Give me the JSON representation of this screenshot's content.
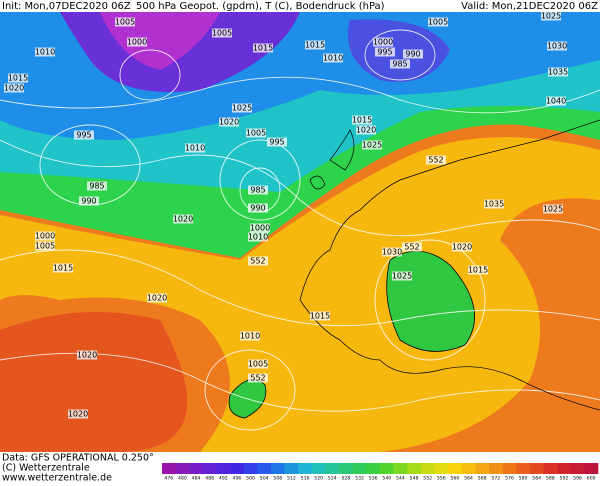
{
  "header": {
    "init": "Init: Mon,07DEC2020 06Z",
    "product": "500 hPa Geopot. (gpdm), T (C), Bodendruck (hPa)",
    "valid": "Valid: Mon,21DEC2020 06Z"
  },
  "footer": {
    "data": "Data: GFS OPERATIONAL 0.250°",
    "copyright": "(C) Wetterzentrale",
    "url": "www.wetterzentrale.de"
  },
  "colorbar_labels": [
    476,
    480,
    484,
    488,
    492,
    496,
    500,
    504,
    508,
    512,
    516,
    520,
    524,
    528,
    532,
    536,
    540,
    544,
    548,
    552,
    556,
    560,
    564,
    568,
    572,
    576,
    580,
    584,
    588,
    592,
    596,
    600
  ],
  "map_labels": [
    "1005",
    "1000",
    "1010",
    "1015",
    "1020",
    "1005",
    "1015",
    "1015",
    "1010",
    "1000",
    "990",
    "995",
    "985",
    "1005",
    "1025",
    "1030",
    "1035",
    "1040",
    "995",
    "1005",
    "995",
    "1025",
    "1020",
    "1010",
    "1015",
    "1020",
    "1025",
    "552",
    "985",
    "990",
    "985",
    "990",
    "1020",
    "1000",
    "1010",
    "1035",
    "1025",
    "1000",
    "1005",
    "1015",
    "552",
    "1030",
    "552",
    "1020",
    "1025",
    "1015",
    "1015",
    "1020",
    "1010",
    "1020",
    "1005",
    "552",
    "1020"
  ]
}
